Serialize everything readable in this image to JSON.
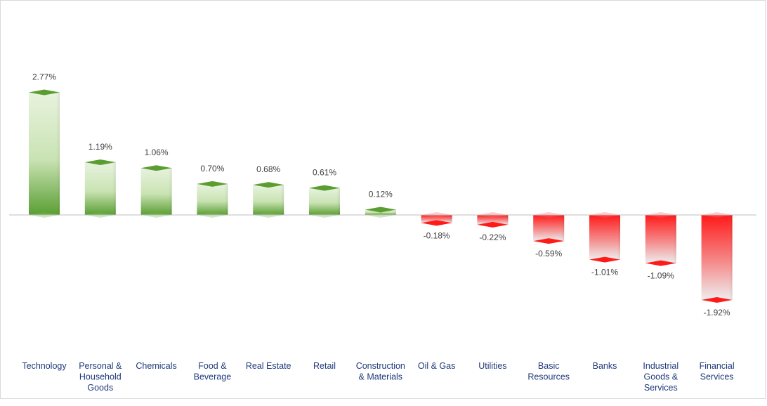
{
  "chart_data": {
    "type": "bar",
    "title": "",
    "xlabel": "",
    "ylabel": "",
    "categories": [
      "Technology",
      "Personal & Household Goods",
      "Chemicals",
      "Food & Beverage",
      "Real Estate",
      "Retail",
      "Construction & Materials",
      "Oil & Gas",
      "Utilities",
      "Basic Resources",
      "Banks",
      "Industrial Goods & Services",
      "Financial Services"
    ],
    "category_lines": [
      [
        "Technology"
      ],
      [
        "Personal &",
        "Household",
        "Goods"
      ],
      [
        "Chemicals"
      ],
      [
        "Food &",
        "Beverage"
      ],
      [
        "Real Estate"
      ],
      [
        "Retail"
      ],
      [
        "Construction",
        "& Materials"
      ],
      [
        "Oil & Gas"
      ],
      [
        "Utilities"
      ],
      [
        "Basic",
        "Resources"
      ],
      [
        "Banks"
      ],
      [
        "Industrial",
        "Goods &",
        "Services"
      ],
      [
        "Financial",
        "Services"
      ]
    ],
    "values": [
      2.77,
      1.19,
      1.06,
      0.7,
      0.68,
      0.61,
      0.12,
      -0.18,
      -0.22,
      -0.59,
      -1.01,
      -1.09,
      -1.92
    ],
    "value_labels": [
      "2.77%",
      "1.19%",
      "1.06%",
      "0.70%",
      "0.68%",
      "0.61%",
      "0.12%",
      "-0.18%",
      "-0.22%",
      "-0.59%",
      "-1.01%",
      "-1.09%",
      "-1.92%"
    ],
    "unit": "%",
    "ylim": [
      -2.2,
      3.2
    ],
    "grid": false,
    "legend": "none",
    "colors": {
      "positive_dark": "#5a9e32",
      "positive_light": "#e8f3de",
      "negative_dark": "#ff1a1a",
      "negative_light": "#eeeeee",
      "axis": "#bfbfbf",
      "category_text": "#1f3a7a",
      "value_text": "#404040"
    }
  }
}
